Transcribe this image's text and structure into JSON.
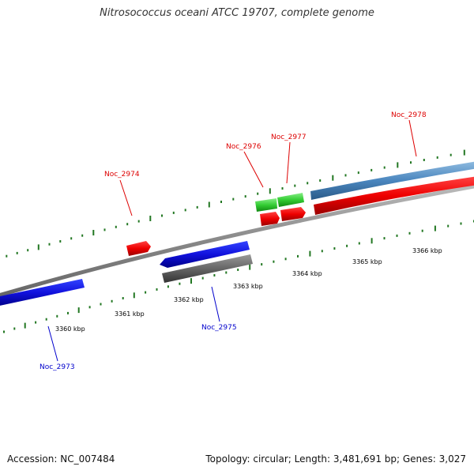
{
  "title": "Nitrosococcus oceani ATCC 19707, complete genome",
  "footer": {
    "accession": "Accession: NC_007484",
    "summary": "Topology: circular; Length: 3,481,691 bp; Genes: 3,027"
  },
  "colors": {
    "forward_gene": "#ee1111",
    "reverse_gene": "#1111dd",
    "rna": "#33cc33",
    "pseudo": "#666666",
    "region": "#4a86be",
    "tick": "#227722",
    "backbone": "#888888"
  },
  "tick_labels": [
    "3360 kbp",
    "3361 kbp",
    "3362 kbp",
    "3363 kbp",
    "3364 kbp",
    "3365 kbp",
    "3366 kbp"
  ],
  "gene_labels": {
    "top": [
      "Noc_2974",
      "Noc_2976",
      "Noc_2977",
      "Noc_2978"
    ],
    "bottom": [
      "Noc_2973",
      "Noc_2975"
    ]
  }
}
